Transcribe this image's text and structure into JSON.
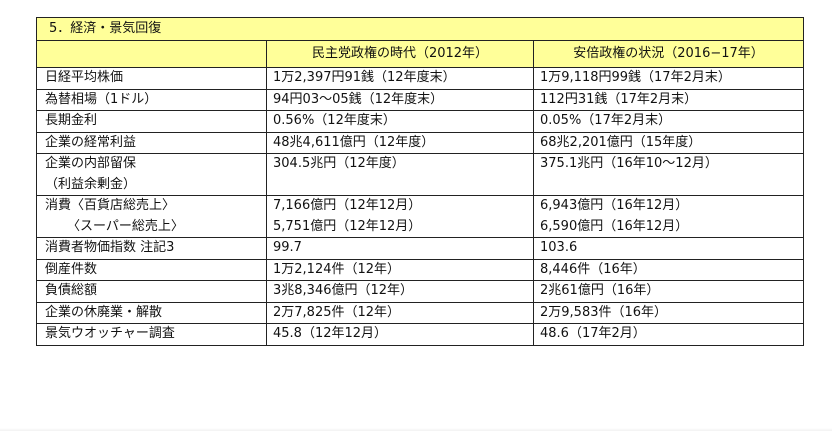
{
  "section_title": "5．経済・景気回復",
  "columns": {
    "label": "",
    "dpj": "民主党政権の時代（2012年）",
    "abe": "安倍政権の状況（2016−17年）"
  },
  "rows": [
    {
      "label": "日経平均株価",
      "dpj": "1万2,397円91銭（12年度末）",
      "abe": "1万9,118円99銭（17年2月末）"
    },
    {
      "label": "為替相場（1ドル）",
      "dpj": "94円03〜05銭（12年度末）",
      "abe": "112円31銭（17年2月末）"
    },
    {
      "label": "長期金利",
      "dpj": "0.56%（12年度末）",
      "abe": "0.05%（17年2月末）"
    },
    {
      "label": "企業の経常利益",
      "dpj": "48兆4,611億円（12年度）",
      "abe": "68兆2,201億円（15年度）"
    },
    {
      "label": "企業の内部留保",
      "label2": "（利益余剰金）",
      "dpj": "304.5兆円（12年度）",
      "abe": "375.1兆円（16年10〜12月）"
    },
    {
      "label": "消費〈百貨店総売上〉",
      "label2": "〈スーパー総売上〉",
      "dpj": "7,166億円（12年12月）",
      "dpj2": "5,751億円（12年12月）",
      "abe": "6,943億円（16年12月）",
      "abe2": "6,590億円（16年12月）"
    },
    {
      "label": "消費者物価指数 注記3",
      "dpj": "99.7",
      "abe": "103.6"
    },
    {
      "label": "倒産件数",
      "dpj": "1万2,124件（12年）",
      "abe": "8,446件（16年）"
    },
    {
      "label": "負債総額",
      "dpj": "3兆8,346億円（12年）",
      "abe": "2兆61億円（16年）"
    },
    {
      "label": "企業の休廃業・解散",
      "dpj": "2万7,825件（12年）",
      "abe": "2万9,583件（16年）"
    },
    {
      "label": "景気ウオッチャー調査",
      "dpj": "45.8（12年12月）",
      "abe": "48.6（17年2月）"
    }
  ]
}
